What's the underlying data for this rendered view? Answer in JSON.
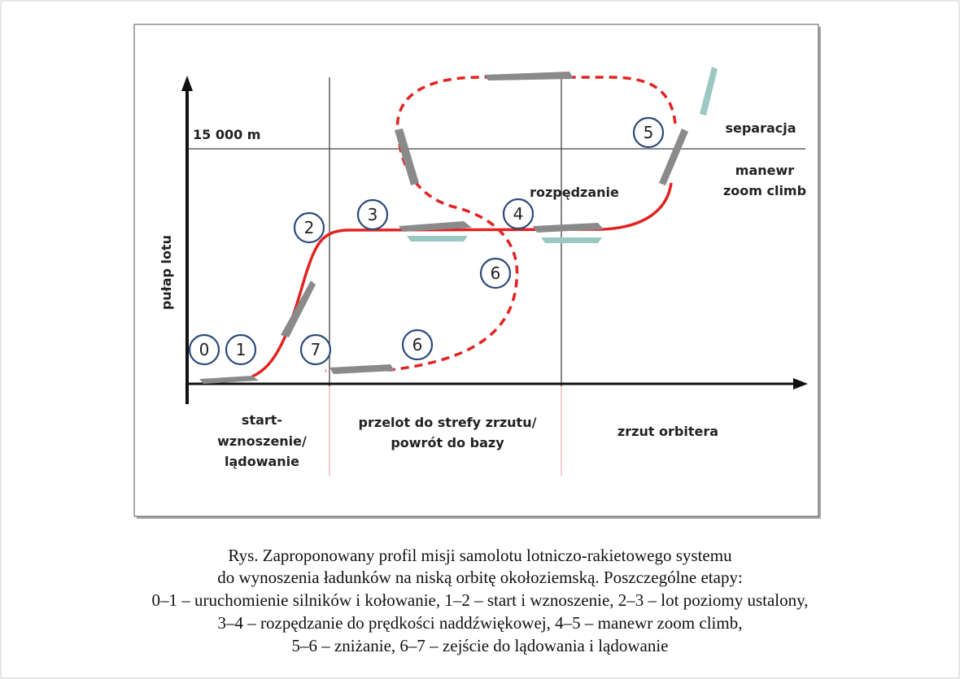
{
  "diagram": {
    "axis": {
      "y_label": "pułap lotu",
      "altitude_label": "15 000 m"
    },
    "markers": [
      "0",
      "1",
      "2",
      "3",
      "4",
      "5",
      "6",
      "6",
      "7"
    ],
    "annotations": {
      "separation": "separacja",
      "zoom_climb": [
        "manewr",
        "zoom climb"
      ],
      "acceleration": "rozpędzanie"
    },
    "phases": [
      [
        "start-",
        "wznoszenie/",
        "lądowanie"
      ],
      [
        "przelot do strefy zrzutu/",
        "powrót do bazy"
      ],
      [
        "zrzut orbitera"
      ]
    ]
  },
  "caption": [
    "Rys. Zaproponowany profil misji samolotu lotniczo-rakietowego systemu",
    "do wynoszenia ładunków na niską orbitę okołoziemską. Poszczególne etapy:",
    "0–1 – uruchomienie silników i kołowanie, 1–2 – start i wznoszenie, 2–3 – lot poziomy ustalony,",
    "3–4 – rozpędzanie do prędkości naddźwiękowej, 4–5 – manewr zoom climb,",
    "5–6 – zniżanie, 6–7 – zejście do lądowania i lądowanie"
  ]
}
